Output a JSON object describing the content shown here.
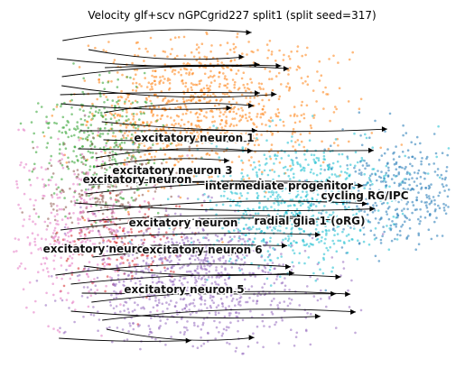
{
  "chart_data": {
    "type": "scatter",
    "title": "Velocity glf+scv nGPCgrid227 split1 (split seed=317)",
    "xlabel": "",
    "ylabel": "",
    "grid": false,
    "axes_visible": false,
    "overlay": "velocity streamlines with arrowheads",
    "clusters": [
      {
        "name": "excitatory neuron 1",
        "color": "#ff7f0e"
      },
      {
        "name": "excitatory neuron 3",
        "color": "#2ca02c"
      },
      {
        "name": "excitatory neuron",
        "color": "#8c564b"
      },
      {
        "name": "intermediate progenitor",
        "color": "#17becf"
      },
      {
        "name": "cycling RG/IPC",
        "color": "#1f77b4"
      },
      {
        "name": "excitatory neuron",
        "color": "#d62728"
      },
      {
        "name": "radial glia 1 (oRG)",
        "color": "#17becf"
      },
      {
        "name": "excitatory neuron",
        "color": "#e377c2"
      },
      {
        "name": "excitatory neuron 6",
        "color": "#9467bd"
      },
      {
        "name": "excitatory neuron 5",
        "color": "#9467bd"
      }
    ]
  }
}
